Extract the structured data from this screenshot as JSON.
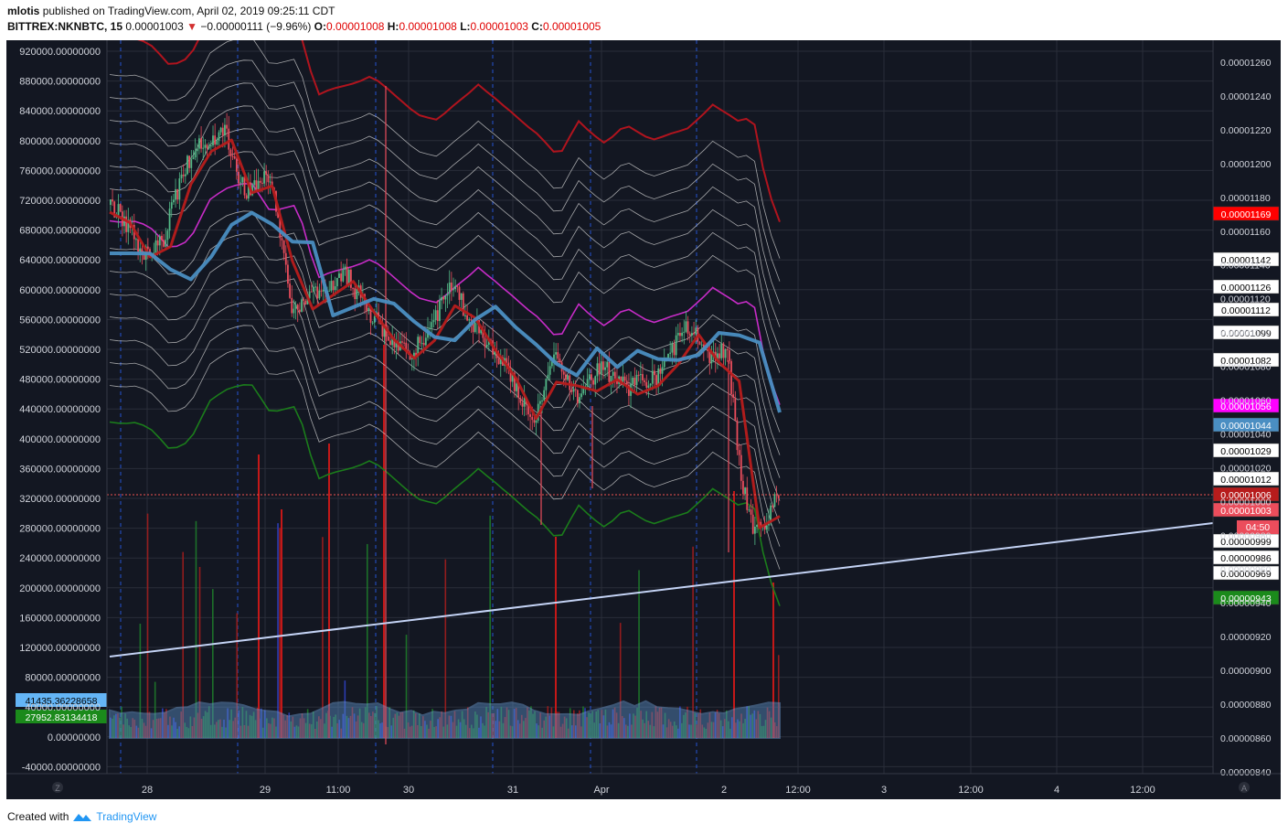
{
  "header": {
    "user": "mlotis",
    "published": "published on TradingView.com, April 02, 2019 09:25:11 CDT",
    "symbol": "BITTREX:NKNBTC, 15",
    "last": "0.00001003",
    "change": "−0.00000111 (−9.96%)",
    "o_label": "O:",
    "o_val": "0.00001008",
    "h_label": "H:",
    "h_val": "0.00001008",
    "l_label": "L:",
    "l_val": "0.00001003",
    "c_label": "C:",
    "c_val": "0.00001005"
  },
  "footer": {
    "created": "Created with",
    "brand": "TradingView"
  },
  "colors": {
    "bg": "#131722",
    "grid": "#2a2e39",
    "up": "#53b987",
    "down": "#eb4d5c",
    "ema_red": "#b71c1c",
    "sma_blue": "#4a8ec2",
    "magenta": "#c72cc7",
    "green_band": "#1b7d1b",
    "red_band": "#b0141e",
    "trendline": "#c4d3f5"
  },
  "chart_data": {
    "type": "candlestick",
    "x_tick_labels": [
      "28",
      "29",
      "11:00",
      "30",
      "31",
      "Apr",
      "2",
      "12:00",
      "3",
      "12:00",
      "4",
      "12:00"
    ],
    "left_axis_labels": [
      "920000.00000000",
      "880000.00000000",
      "840000.00000000",
      "800000.00000000",
      "760000.00000000",
      "720000.00000000",
      "680000.00000000",
      "640000.00000000",
      "600000.00000000",
      "560000.00000000",
      "520000.00000000",
      "480000.00000000",
      "440000.00000000",
      "400000.00000000",
      "360000.00000000",
      "320000.00000000",
      "280000.00000000",
      "240000.00000000",
      "200000.00000000",
      "160000.00000000",
      "120000.00000000",
      "80000.00000000",
      "40000.00000000",
      "0.00000000",
      "-40000.00000000"
    ],
    "right_axis_labels": [
      "0.00001260",
      "0.00001240",
      "0.00001220",
      "0.00001200",
      "0.00001180",
      "0.00001160",
      "0.00001140",
      "0.00001120",
      "0.00001100",
      "0.00001080",
      "0.00001060",
      "0.00001040",
      "0.00001020",
      "0.00001000",
      "0.00000980",
      "0.00000960",
      "0.00000940",
      "0.00000920",
      "0.00000900",
      "0.00000880",
      "0.00000860",
      "0.00000840"
    ],
    "right_axis_range": [
      8.4e-06,
      1.26e-05
    ],
    "left_axis_range": [
      -40000,
      920000
    ],
    "price_badges": [
      {
        "value": "0.00001169",
        "bg": "#ff0000",
        "fg": "#ffffff"
      },
      {
        "value": "0.00001142",
        "bg": "#ffffff",
        "fg": "#000000"
      },
      {
        "value": "0.00001126",
        "bg": "#ffffff",
        "fg": "#000000"
      },
      {
        "value": "0.00001112",
        "bg": "#ffffff",
        "fg": "#000000"
      },
      {
        "value": "0.00001099",
        "bg": "#ffffff",
        "fg": "#000000"
      },
      {
        "value": "0.00001082",
        "bg": "#ffffff",
        "fg": "#000000"
      },
      {
        "value": "0.00001056",
        "bg": "#ff00ff",
        "fg": "#ffffff"
      },
      {
        "value": "0.00001044",
        "bg": "#4a8ec2",
        "fg": "#ffffff"
      },
      {
        "value": "0.00001029",
        "bg": "#ffffff",
        "fg": "#000000"
      },
      {
        "value": "0.00001012",
        "bg": "#ffffff",
        "fg": "#000000"
      },
      {
        "value": "0.00001006",
        "bg": "#b71c1c",
        "fg": "#ffffff"
      },
      {
        "value": "0.00001003",
        "bg": "#eb4d5c",
        "fg": "#ffffff"
      },
      {
        "value": "0.00000999",
        "bg": "#ffffff",
        "fg": "#000000"
      },
      {
        "value": "0.00000986",
        "bg": "#ffffff",
        "fg": "#000000"
      },
      {
        "value": "0.00000969",
        "bg": "#ffffff",
        "fg": "#000000"
      },
      {
        "value": "0.00000943",
        "bg": "#1b8a1b",
        "fg": "#ffffff"
      }
    ],
    "countdown": "04:50",
    "volume_badges": [
      {
        "value": "41435.36228658",
        "bg": "#64b5f6",
        "fg": "#000000"
      },
      {
        "value": "27952.83134418",
        "bg": "#1b8a1b",
        "fg": "#ffffff"
      }
    ],
    "series": [
      {
        "name": "",
        "color": "#b71c1c",
        "desc": "EMA",
        "points": [
          [
            0,
            66
          ],
          [
            3,
            70
          ],
          [
            6,
            70
          ],
          [
            9,
            72
          ],
          [
            12,
            76
          ],
          [
            15,
            76
          ],
          [
            18,
            74
          ],
          [
            21,
            72
          ],
          [
            24,
            71
          ],
          [
            27,
            69
          ],
          [
            30,
            65
          ],
          [
            33,
            61
          ],
          [
            36,
            59
          ],
          [
            39,
            58
          ],
          [
            42,
            57
          ],
          [
            45,
            55
          ],
          [
            48,
            54
          ],
          [
            51,
            53
          ],
          [
            54,
            51
          ],
          [
            57,
            48
          ],
          [
            60,
            47
          ],
          [
            63,
            46
          ],
          [
            66,
            45
          ],
          [
            69,
            45
          ],
          [
            72,
            42
          ],
          [
            75,
            39
          ],
          [
            78,
            38
          ],
          [
            81,
            37
          ],
          [
            84,
            37
          ],
          [
            87,
            37
          ],
          [
            90,
            33
          ],
          [
            93,
            27
          ],
          [
            96,
            27
          ],
          [
            99,
            26
          ]
        ]
      },
      {
        "name": "",
        "color": "#4a8ec2",
        "desc": "SMA",
        "points": [
          [
            0,
            63
          ],
          [
            3,
            64
          ],
          [
            6,
            65
          ],
          [
            9,
            66
          ],
          [
            12,
            68
          ],
          [
            15,
            70
          ],
          [
            18,
            71
          ],
          [
            21,
            72
          ],
          [
            24,
            71
          ],
          [
            27,
            70
          ],
          [
            30,
            69
          ],
          [
            33,
            67
          ],
          [
            36,
            65
          ],
          [
            39,
            64
          ],
          [
            42,
            63
          ],
          [
            45,
            61
          ],
          [
            48,
            59
          ],
          [
            51,
            58
          ],
          [
            54,
            57
          ],
          [
            57,
            56
          ],
          [
            60,
            55
          ],
          [
            63,
            53
          ],
          [
            66,
            51
          ],
          [
            69,
            50
          ],
          [
            72,
            49
          ],
          [
            75,
            48
          ],
          [
            78,
            48
          ],
          [
            81,
            48
          ],
          [
            84,
            48
          ],
          [
            87,
            48
          ],
          [
            90,
            48
          ],
          [
            93,
            44
          ],
          [
            96,
            41
          ],
          [
            99,
            40
          ]
        ]
      }
    ]
  }
}
